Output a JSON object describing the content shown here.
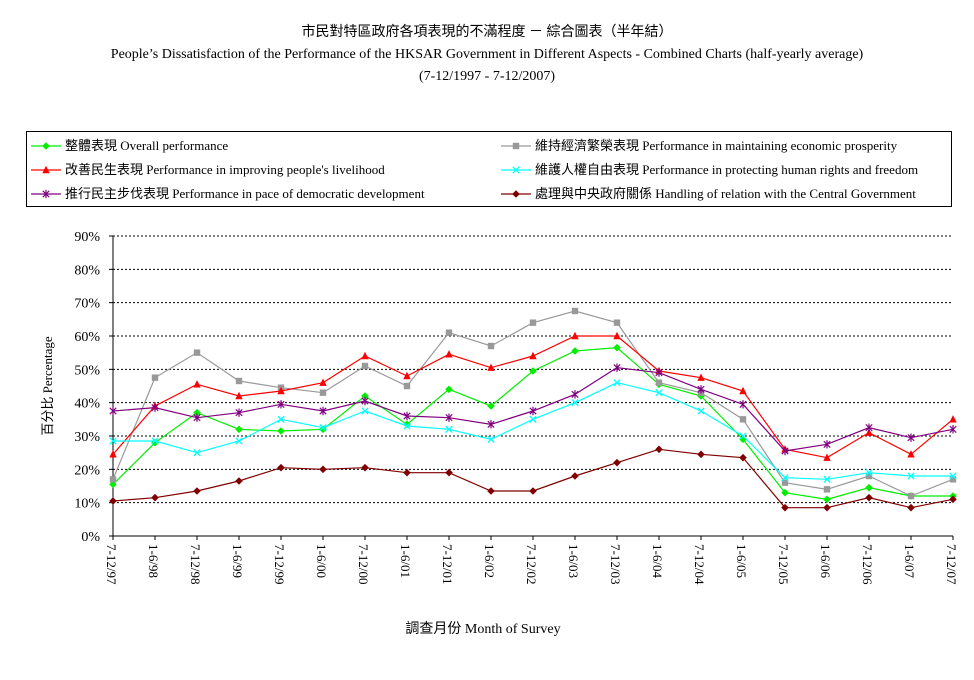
{
  "title": {
    "chinese": "市民對特區政府各項表現的不滿程度 － 綜合圖表（半年結）",
    "english": "People’s Dissatisfaction of the Performance of the HKSAR Government in Different Aspects - Combined Charts (half-yearly average)",
    "period": "(7-12/1997 - 7-12/2007)"
  },
  "chart_data": {
    "type": "line",
    "title": "市民對特區政府各項表現的不滿程度 － 綜合圖表（半年結）",
    "xlabel": "調查月份 Month of Survey",
    "ylabel": "百分比 Percentage",
    "ylim": [
      0,
      90
    ],
    "yticks": [
      "0%",
      "10%",
      "20%",
      "30%",
      "40%",
      "50%",
      "60%",
      "70%",
      "80%",
      "90%"
    ],
    "grid": "horizontal dotted",
    "legend_position": "top",
    "categories": [
      "7-12/97",
      "1-6/98",
      "7-12/98",
      "1-6/99",
      "7-12/99",
      "1-6/00",
      "7-12/00",
      "1-6/01",
      "7-12/01",
      "1-6/02",
      "7-12/02",
      "1-6/03",
      "7-12/03",
      "1-6/04",
      "7-12/04",
      "1-6/05",
      "7-12/05",
      "1-6/06",
      "7-12/06",
      "1-6/07",
      "7-12/07"
    ],
    "series": [
      {
        "name": "整體表現 Overall performance",
        "color": "#00ee00",
        "marker": "diamond",
        "values": [
          15.5,
          28,
          37,
          32,
          31.5,
          32,
          42,
          33.5,
          44,
          39,
          49.5,
          55.5,
          56.5,
          45.5,
          42,
          29,
          13,
          11,
          14.5,
          12,
          12
        ]
      },
      {
        "name": "維持經濟繁榮表現 Performance in maintaining economic prosperity",
        "color": "#999999",
        "marker": "square",
        "values": [
          17,
          47.5,
          55,
          46.5,
          44.5,
          43,
          51,
          45,
          61,
          57,
          64,
          67.5,
          64,
          46,
          43,
          35,
          16,
          14,
          18,
          12,
          17
        ]
      },
      {
        "name": "改善民生表現 Performance in improving people's livelihood",
        "color": "#ff0000",
        "marker": "triangle",
        "values": [
          24.5,
          39,
          45.5,
          42,
          43.5,
          46,
          54,
          48,
          54.5,
          50.5,
          54,
          60,
          60,
          49.5,
          47.5,
          43.5,
          26,
          23.5,
          31,
          24.5,
          35
        ]
      },
      {
        "name": "維護人權自由表現 Performance in protecting human rights and freedom",
        "color": "#00ffff",
        "marker": "x",
        "values": [
          28.5,
          28.5,
          25,
          28.5,
          35,
          32.5,
          37.5,
          33,
          32,
          29,
          35,
          40,
          46,
          43,
          37.5,
          30,
          17.5,
          17,
          19,
          18,
          18
        ]
      },
      {
        "name": "推行民主步伐表現 Performance in pace of democratic development",
        "color": "#800080",
        "marker": "star",
        "values": [
          37.5,
          38.5,
          35.5,
          37,
          39.5,
          37.5,
          40.5,
          36,
          35.5,
          33.5,
          37.5,
          42.5,
          50.5,
          49,
          44,
          39.5,
          25.5,
          27.5,
          32.5,
          29.5,
          32
        ]
      },
      {
        "name": "處理與中央政府關係 Handling of relation with the Central Government",
        "color": "#800000",
        "marker": "diamond",
        "values": [
          10.5,
          11.5,
          13.5,
          16.5,
          20.5,
          20,
          20.5,
          19,
          19,
          13.5,
          13.5,
          18,
          22,
          26,
          24.5,
          23.5,
          8.5,
          8.5,
          11.5,
          8.5,
          11
        ]
      }
    ]
  }
}
